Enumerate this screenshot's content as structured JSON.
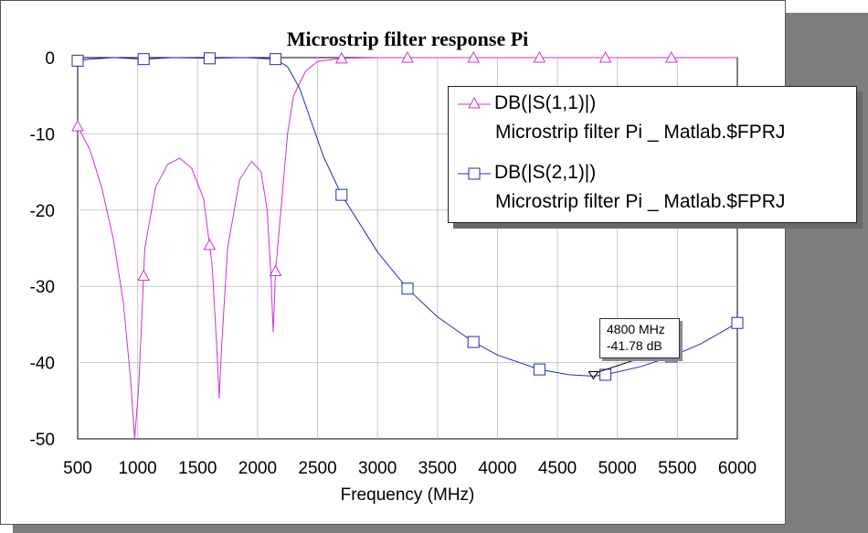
{
  "chart_data": {
    "type": "line",
    "title": "Microstrip filter response Pi",
    "xlabel": "Frequency (MHz)",
    "ylabel": "",
    "xlim": [
      500,
      6000
    ],
    "ylim": [
      -50,
      0
    ],
    "x_ticks": [
      "500",
      "1000",
      "1500",
      "2000",
      "2500",
      "3000",
      "3500",
      "4000",
      "4500",
      "5000",
      "5500",
      "6000"
    ],
    "y_ticks": [
      "0",
      "-10",
      "-20",
      "-30",
      "-40",
      "-50"
    ],
    "grid": true,
    "legend_position": "top-right",
    "series": [
      {
        "name": "DB(|S(1,1)|)",
        "source": "Microstrip filter Pi _ Matlab.$FPRJ",
        "color": "#cc33cc",
        "marker": "triangle",
        "points": [
          [
            500,
            -9
          ],
          [
            600,
            -12
          ],
          [
            700,
            -17
          ],
          [
            800,
            -24
          ],
          [
            880,
            -32
          ],
          [
            940,
            -42
          ],
          [
            975,
            -50
          ],
          [
            1010,
            -43
          ],
          [
            1060,
            -25
          ],
          [
            1150,
            -17
          ],
          [
            1250,
            -14
          ],
          [
            1350,
            -13.2
          ],
          [
            1450,
            -14.5
          ],
          [
            1550,
            -18.5
          ],
          [
            1620,
            -27
          ],
          [
            1660,
            -38
          ],
          [
            1680,
            -44.7
          ],
          [
            1700,
            -38
          ],
          [
            1750,
            -25
          ],
          [
            1850,
            -16
          ],
          [
            1950,
            -13.6
          ],
          [
            2030,
            -15
          ],
          [
            2080,
            -20
          ],
          [
            2110,
            -28
          ],
          [
            2130,
            -36
          ],
          [
            2150,
            -28
          ],
          [
            2200,
            -19
          ],
          [
            2250,
            -10
          ],
          [
            2300,
            -5
          ],
          [
            2400,
            -1.8
          ],
          [
            2500,
            -0.5
          ],
          [
            2700,
            -0.1
          ],
          [
            3000,
            0
          ],
          [
            6000,
            0
          ]
        ],
        "marker_x": [
          500,
          1050,
          1600,
          2150,
          2700,
          3250,
          3800,
          4350,
          4900,
          5450
        ]
      },
      {
        "name": "DB(|S(2,1)|)",
        "source": "Microstrip filter Pi _ Matlab.$FPRJ",
        "color": "#1f2fb0",
        "marker": "square",
        "points": [
          [
            500,
            -0.4
          ],
          [
            600,
            -0.2
          ],
          [
            800,
            0
          ],
          [
            1050,
            -0.2
          ],
          [
            1300,
            0
          ],
          [
            1600,
            -0.1
          ],
          [
            1900,
            0
          ],
          [
            2150,
            -0.2
          ],
          [
            2250,
            -1.2
          ],
          [
            2350,
            -4
          ],
          [
            2450,
            -8.5
          ],
          [
            2550,
            -13
          ],
          [
            2700,
            -18
          ],
          [
            2900,
            -23
          ],
          [
            3000,
            -25.5
          ],
          [
            3250,
            -30.3
          ],
          [
            3500,
            -34
          ],
          [
            3800,
            -37.3
          ],
          [
            4000,
            -39
          ],
          [
            4350,
            -40.9
          ],
          [
            4600,
            -41.6
          ],
          [
            4800,
            -41.78
          ],
          [
            4900,
            -41.6
          ],
          [
            5200,
            -40.5
          ],
          [
            5450,
            -39.2
          ],
          [
            5700,
            -37.5
          ],
          [
            6000,
            -34.8
          ]
        ],
        "marker_x": [
          500,
          1050,
          1600,
          2150,
          2700,
          3250,
          3800,
          4350,
          4900,
          5450,
          6000
        ]
      }
    ],
    "annotations": [
      {
        "x": 4800,
        "y": -41.78,
        "label_freq": "4800 MHz",
        "label_value": "-41.78 dB"
      }
    ]
  }
}
